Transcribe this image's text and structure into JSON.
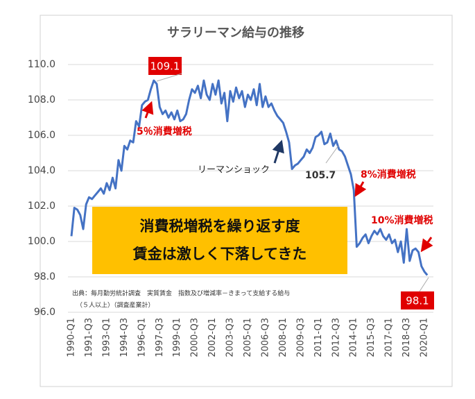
{
  "chart_data": {
    "type": "line",
    "title": "サラリーマン給与の推移",
    "categories": [
      "1990-Q1",
      null,
      null,
      null,
      null,
      null,
      "1991-Q3",
      null,
      null,
      null,
      null,
      null,
      "1993-Q1",
      null,
      null,
      null,
      null,
      null,
      "1994-Q3",
      null,
      null,
      null,
      null,
      null,
      "1996-Q1",
      null,
      null,
      null,
      null,
      null,
      "1997-Q3",
      null,
      null,
      null,
      null,
      null,
      "1999-Q1",
      null,
      null,
      null,
      null,
      null,
      "2000-Q3",
      null,
      null,
      null,
      null,
      null,
      "2002-Q1",
      null,
      null,
      null,
      null,
      null,
      "2003-Q3",
      null,
      null,
      null,
      null,
      null,
      "2005-Q1",
      null,
      null,
      null,
      null,
      null,
      "2006-Q3",
      null,
      null,
      null,
      null,
      null,
      "2008-Q1",
      null,
      null,
      null,
      null,
      null,
      "2009-Q3",
      null,
      null,
      null,
      null,
      null,
      "2011-Q1",
      null,
      null,
      null,
      null,
      null,
      "2012-Q3",
      null,
      null,
      null,
      null,
      null,
      "2014-Q1",
      null,
      null,
      null,
      null,
      null,
      "2015-Q3",
      null,
      null,
      null,
      null,
      null,
      "2017-Q1",
      null,
      null,
      null,
      null,
      null,
      "2018-Q3",
      null,
      null,
      null,
      null,
      null,
      "2020-Q1",
      null
    ],
    "values": [
      100.3,
      101.9,
      101.8,
      101.5,
      100.7,
      102.1,
      102.5,
      102.4,
      102.6,
      102.8,
      103.0,
      102.7,
      103.3,
      102.9,
      103.6,
      103.0,
      104.6,
      104.0,
      105.4,
      105.2,
      105.7,
      105.6,
      106.8,
      106.5,
      107.7,
      107.9,
      108.0,
      108.6,
      109.1,
      108.9,
      107.6,
      107.2,
      107.4,
      107.0,
      107.3,
      106.9,
      107.4,
      106.8,
      106.9,
      107.2,
      108.0,
      108.6,
      108.4,
      108.8,
      108.1,
      109.1,
      108.3,
      108.0,
      108.9,
      108.3,
      109.1,
      107.8,
      108.4,
      106.8,
      108.5,
      107.9,
      108.7,
      108.1,
      108.5,
      107.6,
      108.3,
      108.0,
      108.6,
      107.7,
      108.9,
      107.6,
      108.2,
      107.6,
      107.8,
      107.4,
      107.1,
      106.9,
      106.7,
      106.2,
      105.6,
      104.1,
      104.3,
      104.4,
      104.6,
      104.8,
      105.2,
      105.0,
      105.3,
      105.9,
      106.0,
      106.2,
      105.5,
      105.6,
      106.1,
      105.4,
      105.7,
      105.2,
      105.1,
      104.8,
      104.3,
      103.8,
      102.9,
      99.7,
      99.9,
      100.2,
      100.4,
      99.9,
      100.3,
      100.6,
      100.4,
      100.7,
      100.3,
      100.1,
      100.4,
      99.9,
      100.1,
      99.4,
      100.0,
      98.8,
      100.7,
      98.9,
      99.5,
      99.6,
      99.4,
      98.6,
      98.3,
      98.1
    ],
    "color": "#4472c4",
    "ylim": [
      96,
      110
    ],
    "yticks": [
      {
        "value": 96,
        "label": "96.0"
      },
      {
        "value": 98,
        "label": "98.0"
      },
      {
        "value": 100,
        "label": "100.0"
      },
      {
        "value": 102,
        "label": "102.0"
      },
      {
        "value": 104,
        "label": "104.0"
      },
      {
        "value": 106,
        "label": "106.0"
      },
      {
        "value": 108,
        "label": "108.0"
      },
      {
        "value": 110,
        "label": "110.0"
      }
    ],
    "grid": true,
    "annotations": {
      "peak": "109.1",
      "tax5": "5％消費増税",
      "lehman": "リーマンショック",
      "post": "105.7",
      "tax8": "8%消費増税",
      "tax10": "10%消費増税",
      "last": "98.1"
    },
    "box": [
      "消費税増税を繰り返す度",
      "賃金は激しく下落してきた"
    ],
    "source": [
      "出典：毎月勤労統計調査　実質賃金　指数及び増減率－きまって支給する給与",
      "（５人以上）（調査産業計）"
    ]
  }
}
